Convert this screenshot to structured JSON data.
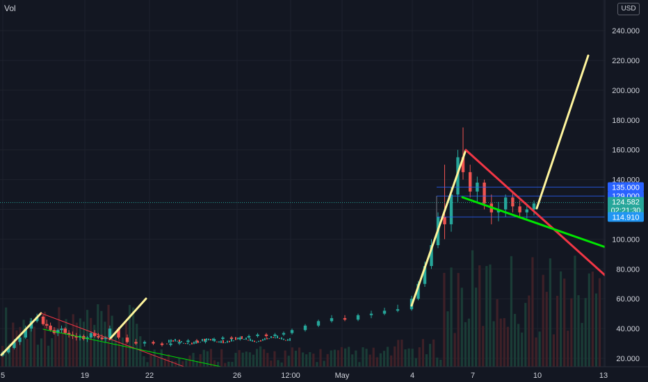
{
  "header": {
    "vol_label": "Vol",
    "currency": "USD"
  },
  "colors": {
    "background": "#131722",
    "grid": "#1e222d",
    "up": "#26a69a",
    "down": "#ef5350",
    "vol_up": "#1a3c36",
    "vol_down": "#3e2027",
    "trend_yellow": "#fff59d",
    "trend_red": "#f23645",
    "trend_green": "#00e600",
    "level_line": "#2962ff",
    "label_blue": "#2196f3",
    "label_dark": "#1e6fa8"
  },
  "chart_data": {
    "type": "candlestick",
    "y_axis": {
      "ticks": [
        "20.000",
        "40.000",
        "60.000",
        "80.000",
        "100.000",
        "120.000",
        "140.000",
        "160.000",
        "180.000",
        "200.000",
        "220.000",
        "240.000"
      ],
      "ylim": [
        16,
        248
      ]
    },
    "x_axis": {
      "ticks": [
        "5",
        "19",
        "22",
        "26",
        "12:00",
        "May",
        "4",
        "7",
        "10",
        "13"
      ]
    },
    "grid": true,
    "price_labels": [
      {
        "id": "level-135",
        "text": "135.000",
        "value": 135.0
      },
      {
        "id": "level-129",
        "text": "129.000",
        "value": 129.0
      },
      {
        "id": "current-price",
        "text": "124.582",
        "value": 124.582
      },
      {
        "id": "countdown",
        "text": "02:21:30",
        "value": 119.8
      },
      {
        "id": "level-114",
        "text": "114.910",
        "value": 114.91
      }
    ],
    "candles_ohlc_sampled": [
      [
        22,
        25,
        21,
        24
      ],
      [
        24,
        28,
        23,
        27
      ],
      [
        27,
        33,
        26,
        31
      ],
      [
        31,
        36,
        29,
        34
      ],
      [
        34,
        42,
        33,
        40
      ],
      [
        40,
        47,
        38,
        45
      ],
      [
        45,
        50,
        44,
        48
      ],
      [
        48,
        49,
        42,
        43
      ],
      [
        43,
        46,
        40,
        42
      ],
      [
        42,
        44,
        38,
        39
      ],
      [
        39,
        41,
        36,
        37
      ],
      [
        37,
        40,
        35,
        39
      ],
      [
        39,
        42,
        37,
        40
      ],
      [
        40,
        41,
        36,
        37
      ],
      [
        37,
        39,
        34,
        36
      ],
      [
        36,
        38,
        33,
        35
      ],
      [
        35,
        37,
        32,
        34
      ],
      [
        34,
        36,
        32,
        35
      ],
      [
        35,
        36,
        32,
        33
      ],
      [
        33,
        35,
        31,
        34
      ],
      [
        34,
        38,
        33,
        37
      ],
      [
        37,
        39,
        34,
        35
      ],
      [
        35,
        37,
        33,
        34
      ],
      [
        34,
        36,
        32,
        33
      ],
      [
        33,
        35,
        31,
        34
      ],
      [
        34,
        42,
        33,
        40
      ],
      [
        40,
        41,
        33,
        34
      ],
      [
        34,
        36,
        30,
        31
      ],
      [
        31,
        33,
        29,
        30
      ],
      [
        30,
        32,
        28,
        31
      ],
      [
        31,
        32,
        29,
        30
      ],
      [
        30,
        31,
        28,
        29
      ],
      [
        29,
        31,
        28,
        30
      ],
      [
        30,
        32,
        29,
        31
      ],
      [
        31,
        33,
        30,
        32
      ],
      [
        32,
        33,
        30,
        31
      ],
      [
        31,
        33,
        30,
        32
      ],
      [
        32,
        34,
        31,
        33
      ],
      [
        33,
        35,
        32,
        34
      ],
      [
        34,
        35,
        32,
        33
      ],
      [
        33,
        35,
        32,
        34
      ],
      [
        34,
        36,
        33,
        35
      ],
      [
        35,
        37,
        34,
        36
      ],
      [
        36,
        37,
        34,
        35
      ],
      [
        35,
        37,
        34,
        36
      ],
      [
        36,
        38,
        35,
        37
      ],
      [
        37,
        40,
        36,
        39
      ],
      [
        39,
        43,
        38,
        42
      ],
      [
        42,
        46,
        41,
        45
      ],
      [
        45,
        49,
        44,
        47
      ],
      [
        47,
        49,
        45,
        46
      ],
      [
        46,
        50,
        45,
        49
      ],
      [
        49,
        52,
        47,
        50
      ],
      [
        50,
        54,
        49,
        52
      ],
      [
        52,
        56,
        51,
        53
      ],
      [
        53,
        62,
        52,
        60
      ],
      [
        60,
        72,
        59,
        70
      ],
      [
        70,
        85,
        68,
        82
      ],
      [
        82,
        100,
        80,
        96
      ],
      [
        96,
        118,
        94,
        115
      ],
      [
        115,
        150,
        100,
        110
      ],
      [
        110,
        135,
        105,
        130
      ],
      [
        130,
        160,
        125,
        155
      ],
      [
        155,
        175,
        140,
        145
      ],
      [
        145,
        150,
        128,
        132
      ],
      [
        132,
        142,
        125,
        138
      ],
      [
        138,
        140,
        120,
        124
      ],
      [
        124,
        130,
        110,
        118
      ],
      [
        118,
        125,
        112,
        120
      ],
      [
        120,
        130,
        115,
        128
      ],
      [
        128,
        132,
        118,
        122
      ],
      [
        122,
        126,
        115,
        118
      ],
      [
        118,
        124,
        114,
        120
      ],
      [
        120,
        126,
        116,
        124
      ]
    ],
    "trendlines": [
      {
        "id": "yellow-leg-1",
        "color": "trend_yellow"
      },
      {
        "id": "yellow-leg-2",
        "color": "trend_yellow"
      },
      {
        "id": "yellow-leg-3",
        "color": "trend_yellow"
      },
      {
        "id": "yellow-leg-4",
        "color": "trend_yellow"
      },
      {
        "id": "red-trend-1",
        "color": "trend_red"
      },
      {
        "id": "green-trend-1",
        "color": "trend_green"
      },
      {
        "id": "red-trend-2",
        "color": "trend_red"
      },
      {
        "id": "green-trend-2",
        "color": "trend_green"
      }
    ]
  }
}
